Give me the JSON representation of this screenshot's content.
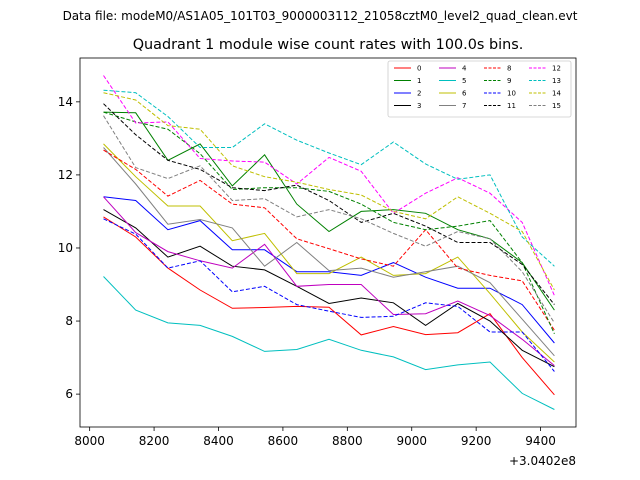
{
  "suptitle": "Data file: modeM0/AS1A05_101T03_9000003112_21058cztM0_level2_quad_clean.evt",
  "chart_data": {
    "type": "line",
    "title": "Quadrant 1 module wise count rates with 100.0s bins.",
    "xlabel": "",
    "ylabel": "",
    "x_offset_label": "+3.0402e8",
    "xlim": [
      7970,
      9510
    ],
    "ylim": [
      5.1,
      15.2
    ],
    "xticks": [
      8000,
      8200,
      8400,
      8600,
      8800,
      9000,
      9200,
      9400
    ],
    "yticks": [
      6,
      8,
      10,
      12,
      14
    ],
    "legend_position": "top-right",
    "x": [
      8043,
      8143,
      8243,
      8343,
      8443,
      8543,
      8643,
      8743,
      8843,
      8943,
      9043,
      9143,
      9243,
      9343,
      9443
    ],
    "series": [
      {
        "name": "0",
        "color": "#ff0000",
        "dash": "solid",
        "values": [
          10.85,
          10.3,
          9.45,
          8.85,
          8.35,
          8.37,
          8.4,
          8.38,
          7.62,
          7.85,
          7.63,
          7.68,
          8.2,
          7.0,
          5.98
        ]
      },
      {
        "name": "1",
        "color": "#008000",
        "dash": "solid",
        "values": [
          13.72,
          13.7,
          12.4,
          12.85,
          11.7,
          12.55,
          11.2,
          10.45,
          11.0,
          11.05,
          10.95,
          10.5,
          10.25,
          9.6,
          8.3
        ]
      },
      {
        "name": "2",
        "color": "#0000ff",
        "dash": "solid",
        "values": [
          11.4,
          11.3,
          10.5,
          10.75,
          9.95,
          9.95,
          9.35,
          9.35,
          9.25,
          9.6,
          9.2,
          8.9,
          8.9,
          8.45,
          7.4
        ]
      },
      {
        "name": "3",
        "color": "#000000",
        "dash": "solid",
        "values": [
          11.05,
          10.55,
          9.75,
          10.05,
          9.5,
          9.4,
          8.95,
          8.48,
          8.63,
          8.5,
          7.88,
          8.48,
          8.0,
          7.2,
          6.75
        ]
      },
      {
        "name": "4",
        "color": "#bf00bf",
        "dash": "solid",
        "values": [
          11.4,
          10.42,
          9.9,
          9.65,
          9.45,
          10.1,
          8.95,
          9.0,
          9.0,
          8.18,
          8.2,
          8.55,
          8.15,
          7.5,
          6.78
        ]
      },
      {
        "name": "5",
        "color": "#00bfbf",
        "dash": "solid",
        "values": [
          9.22,
          8.3,
          7.95,
          7.88,
          7.58,
          7.17,
          7.22,
          7.5,
          7.2,
          7.02,
          6.67,
          6.8,
          6.88,
          6.02,
          5.58
        ]
      },
      {
        "name": "6",
        "color": "#bfbf00",
        "dash": "solid",
        "values": [
          12.85,
          11.95,
          11.15,
          11.15,
          10.2,
          10.4,
          9.3,
          9.3,
          9.75,
          9.25,
          9.3,
          9.75,
          8.75,
          7.7,
          6.88
        ]
      },
      {
        "name": "7",
        "color": "#808080",
        "dash": "solid",
        "values": [
          12.75,
          11.75,
          10.65,
          10.78,
          10.55,
          9.5,
          10.15,
          9.38,
          9.45,
          9.2,
          9.35,
          9.5,
          9.05,
          8.05,
          7.05
        ]
      },
      {
        "name": "8",
        "color": "#ff0000",
        "dash": "dashed",
        "values": [
          12.68,
          12.15,
          11.42,
          11.85,
          11.2,
          11.1,
          10.25,
          9.98,
          9.7,
          9.5,
          10.5,
          9.45,
          9.25,
          9.1,
          7.75
        ]
      },
      {
        "name": "9",
        "color": "#008000",
        "dash": "dashed",
        "values": [
          13.72,
          13.45,
          13.25,
          12.58,
          11.6,
          11.65,
          11.65,
          11.55,
          11.2,
          10.7,
          10.5,
          10.6,
          10.75,
          9.6,
          7.65
        ]
      },
      {
        "name": "10",
        "color": "#0000ff",
        "dash": "dashed",
        "values": [
          10.8,
          10.38,
          9.45,
          9.65,
          8.8,
          8.95,
          8.45,
          8.27,
          8.1,
          8.13,
          8.5,
          8.4,
          7.7,
          7.7,
          6.62
        ]
      },
      {
        "name": "11",
        "color": "#000000",
        "dash": "dashed",
        "values": [
          13.95,
          13.1,
          12.4,
          12.15,
          11.65,
          11.57,
          11.72,
          11.3,
          10.7,
          10.95,
          10.6,
          10.15,
          10.15,
          9.55,
          8.45
        ]
      },
      {
        "name": "12",
        "color": "#ff00ff",
        "dash": "dashed",
        "values": [
          14.72,
          13.42,
          13.45,
          12.45,
          12.38,
          12.35,
          11.75,
          12.48,
          12.1,
          10.95,
          11.5,
          11.92,
          11.5,
          10.7,
          8.7
        ]
      },
      {
        "name": "13",
        "color": "#00bfbf",
        "dash": "dashed",
        "values": [
          14.32,
          14.25,
          13.6,
          12.75,
          12.75,
          13.4,
          12.95,
          12.6,
          12.28,
          12.9,
          12.3,
          11.88,
          12.0,
          10.3,
          9.5
        ]
      },
      {
        "name": "14",
        "color": "#bfbf00",
        "dash": "dashed",
        "values": [
          14.25,
          14.05,
          13.35,
          13.25,
          12.25,
          11.95,
          11.8,
          11.6,
          11.45,
          11.0,
          10.8,
          11.4,
          10.95,
          10.45,
          8.85
        ]
      },
      {
        "name": "15",
        "color": "#808080",
        "dash": "dashed",
        "values": [
          13.62,
          12.2,
          11.9,
          12.25,
          11.3,
          11.35,
          10.85,
          11.05,
          10.8,
          10.4,
          10.05,
          10.45,
          10.25,
          9.35,
          7.95
        ]
      }
    ]
  }
}
